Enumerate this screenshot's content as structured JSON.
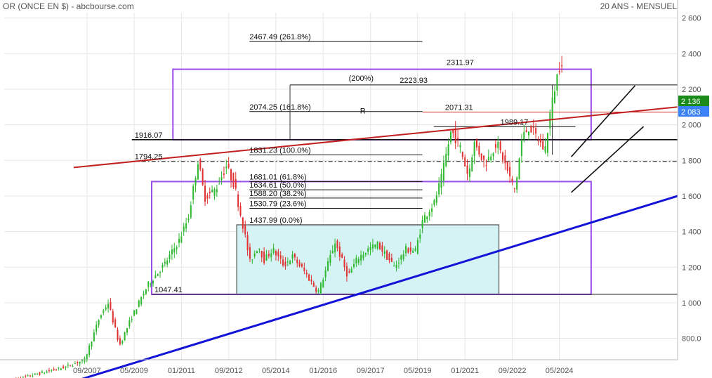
{
  "header": {
    "left": "OR (ONCE EN $) - abcbourse.com",
    "right": "20 ANS - MENSUEL"
  },
  "colors": {
    "up": "#2eb82e",
    "down": "#e03030",
    "grid": "#e6e6e6",
    "purple": "#9b4dea",
    "red_trend": "#c02020",
    "blue_trend": "#1414d8",
    "box_fill": "#d5f3f5",
    "price_green": "#1a8a1a",
    "price_blue": "#3b82f6"
  },
  "badges": {
    "current": "2 136",
    "previous": "2 083"
  },
  "chart_data": {
    "type": "candlestick",
    "y_ticks": [
      {
        "v": 800,
        "label": "800.0"
      },
      {
        "v": 1000,
        "label": "1 000"
      },
      {
        "v": 1200,
        "label": "1 200"
      },
      {
        "v": 1400,
        "label": "1 400"
      },
      {
        "v": 1600,
        "label": "1 600"
      },
      {
        "v": 1800,
        "label": "1 800"
      },
      {
        "v": 2000,
        "label": "2 000"
      },
      {
        "v": 2200,
        "label": "2 200"
      },
      {
        "v": 2400,
        "label": "2 400"
      },
      {
        "v": 2600,
        "label": "2 600"
      }
    ],
    "x_ticks": [
      {
        "t": 2007.67,
        "label": "09/2007"
      },
      {
        "t": 2009.33,
        "label": "05/2009"
      },
      {
        "t": 2011.0,
        "label": "01/2011"
      },
      {
        "t": 2012.67,
        "label": "09/2012"
      },
      {
        "t": 2014.33,
        "label": "05/2014"
      },
      {
        "t": 2016.0,
        "label": "01/2016"
      },
      {
        "t": 2017.67,
        "label": "09/2017"
      },
      {
        "t": 2019.33,
        "label": "05/2019"
      },
      {
        "t": 2021.0,
        "label": "01/2021"
      },
      {
        "t": 2022.67,
        "label": "09/2022"
      },
      {
        "t": 2024.33,
        "label": "05/2024"
      }
    ],
    "ylim": [
      680,
      2630
    ],
    "xlim": [
      2004.75,
      2028.5
    ],
    "anchors": [
      [
        2005.0,
        560
      ],
      [
        2006.0,
        600
      ],
      [
        2007.0,
        640
      ],
      [
        2007.67,
        680
      ],
      [
        2008.2,
        920
      ],
      [
        2008.5,
        1000
      ],
      [
        2008.9,
        760
      ],
      [
        2009.33,
        920
      ],
      [
        2009.9,
        1100
      ],
      [
        2010.5,
        1220
      ],
      [
        2011.0,
        1350
      ],
      [
        2011.33,
        1480
      ],
      [
        2011.67,
        1800
      ],
      [
        2011.9,
        1590
      ],
      [
        2012.3,
        1640
      ],
      [
        2012.67,
        1770
      ],
      [
        2012.95,
        1660
      ],
      [
        2013.3,
        1400
      ],
      [
        2013.5,
        1230
      ],
      [
        2013.8,
        1320
      ],
      [
        2014.0,
        1240
      ],
      [
        2014.3,
        1300
      ],
      [
        2014.7,
        1210
      ],
      [
        2015.0,
        1260
      ],
      [
        2015.4,
        1180
      ],
      [
        2015.9,
        1060
      ],
      [
        2016.0,
        1100
      ],
      [
        2016.5,
        1340
      ],
      [
        2016.95,
        1150
      ],
      [
        2017.3,
        1250
      ],
      [
        2017.67,
        1300
      ],
      [
        2018.0,
        1330
      ],
      [
        2018.6,
        1200
      ],
      [
        2019.0,
        1300
      ],
      [
        2019.33,
        1290
      ],
      [
        2019.6,
        1470
      ],
      [
        2020.0,
        1560
      ],
      [
        2020.25,
        1700
      ],
      [
        2020.6,
        1970
      ],
      [
        2020.9,
        1880
      ],
      [
        2021.2,
        1710
      ],
      [
        2021.4,
        1900
      ],
      [
        2021.8,
        1780
      ],
      [
        2022.2,
        1900
      ],
      [
        2022.4,
        1820
      ],
      [
        2022.67,
        1700
      ],
      [
        2022.85,
        1630
      ],
      [
        2023.1,
        1930
      ],
      [
        2023.35,
        1990
      ],
      [
        2023.7,
        1910
      ],
      [
        2023.9,
        1850
      ],
      [
        2024.05,
        2030
      ],
      [
        2024.3,
        2250
      ],
      [
        2024.42,
        2330
      ],
      [
        2024.6,
        2400
      ]
    ],
    "last_t": 2024.42,
    "hlines": [
      {
        "v": 2467.49,
        "t1": 2013.4,
        "t2": 2019.5,
        "label": "2467.49  (261.8%)",
        "color": "#111"
      },
      {
        "v": 2223.93,
        "t1": 2014.83,
        "t2": 2028.5,
        "label": "2223.93",
        "color": "#111"
      },
      {
        "v": 2074.25,
        "t1": 2013.4,
        "t2": 2019.5,
        "label": "2074.25  (161.8%)",
        "color": "#111"
      },
      {
        "v": 2071.31,
        "t1": 2019.5,
        "t2": 2028.5,
        "label": "2071.31",
        "color": "#d02020"
      },
      {
        "v": 1989.17,
        "t1": 2019.9,
        "t2": 2024.9,
        "label": "1989.17",
        "color": "#111"
      },
      {
        "v": 1916.07,
        "t1": 2009.25,
        "t2": 2028.5,
        "label": "1916.07",
        "color": "#111"
      },
      {
        "v": 1831.23,
        "t1": 2013.4,
        "t2": 2019.5,
        "label": "1831.23  (100.0%)",
        "color": "#111"
      },
      {
        "v": 1794.25,
        "t1": 2009.25,
        "t2": 2028.5,
        "label": "1794.25",
        "color": "#111",
        "dash": "6,3,2,3"
      },
      {
        "v": 1681.01,
        "t1": 2013.4,
        "t2": 2019.5,
        "label": "1681.01  (61.8%)",
        "color": "#111"
      },
      {
        "v": 1634.61,
        "t1": 2013.4,
        "t2": 2019.5,
        "label": "1634.61  (50.0%)",
        "color": "#111"
      },
      {
        "v": 1588.2,
        "t1": 2013.4,
        "t2": 2019.5,
        "label": "1588.20  (38.2%)",
        "color": "#111"
      },
      {
        "v": 1530.79,
        "t1": 2013.4,
        "t2": 2019.5,
        "label": "1530.79  (23.6%)",
        "color": "#111"
      },
      {
        "v": 1437.99,
        "t1": 2013.4,
        "t2": 2019.5,
        "label": "1437.99  (0.0%)",
        "color": "#111"
      },
      {
        "v": 1047.41,
        "t1": 2009.95,
        "t2": 2028.5,
        "label": "1047.41",
        "color": "#111"
      }
    ],
    "extra_labels": [
      {
        "text": "(200%)",
        "t": 2016.9,
        "v": 2248,
        "color": "#111"
      },
      {
        "text": "2311.97",
        "t": 2020.35,
        "v": 2335,
        "color": "#7b2fd0"
      },
      {
        "text": "R",
        "t": 2017.3,
        "v": 2064,
        "color": "#c02020",
        "size": 15
      }
    ],
    "purple_boxes": [
      {
        "t1": 2010.7,
        "v1": 1916.07,
        "t2": 2025.45,
        "v2": 2311.97
      },
      {
        "t1": 2009.95,
        "v1": 1047.41,
        "t2": 2025.45,
        "v2": 1681.01
      }
    ],
    "teal_box": {
      "t1": 2012.95,
      "v1": 1047.41,
      "t2": 2022.2,
      "v2": 1437.99
    },
    "trendlines": [
      {
        "t1": 2007.2,
        "v1": 1760,
        "t2": 2028.5,
        "v2": 2100,
        "color": "#c02020",
        "w": 2
      },
      {
        "t1": 2007.25,
        "v1": 560,
        "t2": 2028.5,
        "v2": 1600,
        "color": "#1414d8",
        "w": 3
      },
      {
        "t1": 2024.75,
        "v1": 1620,
        "t2": 2027.3,
        "v2": 1990,
        "color": "#111",
        "w": 1.6
      },
      {
        "t1": 2024.75,
        "v1": 1820,
        "t2": 2027.0,
        "v2": 2220,
        "color": "#111",
        "w": 1.6
      }
    ],
    "vlines": [
      {
        "t": 2014.83,
        "v1": 1916.07,
        "v2": 2223.93
      },
      {
        "t": 2024.08,
        "v1": 1831.23,
        "v2": 2223.93
      }
    ]
  }
}
